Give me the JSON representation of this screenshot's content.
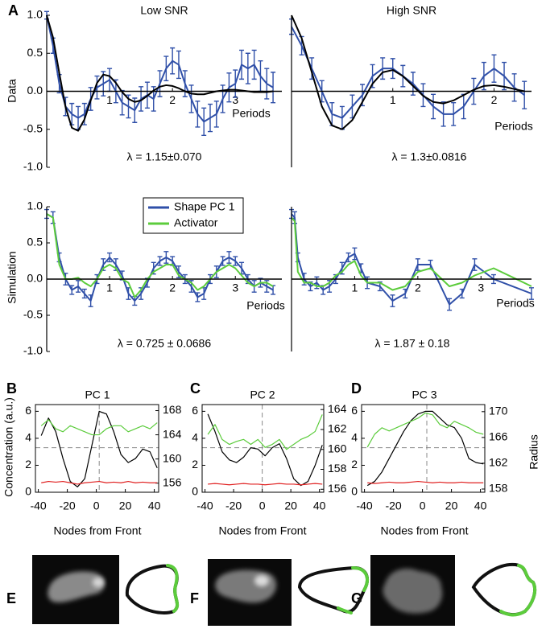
{
  "panel_labels": [
    "A",
    "B",
    "C",
    "D",
    "E",
    "F",
    "G"
  ],
  "chart_data": [
    {
      "type": "line",
      "frame": "origin",
      "title": "Low SNR",
      "ylabel": "Data",
      "xlabel": "Periods",
      "annotation": "λ = 1.15±0.070",
      "xlim": [
        0,
        3.74
      ],
      "ylim": [
        -1,
        1
      ],
      "xticks": [
        1,
        2,
        3
      ],
      "yticks": [
        {
          "value": -1,
          "label": "-1.0"
        },
        {
          "value": -0.5,
          "label": "-0.5"
        },
        {
          "value": 0,
          "label": "0.0"
        },
        {
          "value": 0.5,
          "label": "0.5"
        },
        {
          "value": 1,
          "label": "1.0"
        }
      ],
      "x": [
        0,
        0.1,
        0.2,
        0.3,
        0.4,
        0.5,
        0.6,
        0.7,
        0.8,
        0.9,
        1.0,
        1.1,
        1.2,
        1.3,
        1.4,
        1.5,
        1.6,
        1.7,
        1.8,
        1.9,
        2.0,
        2.1,
        2.2,
        2.3,
        2.4,
        2.5,
        2.6,
        2.7,
        2.8,
        2.9,
        3.0,
        3.1,
        3.2,
        3.3,
        3.4,
        3.5,
        3.6
      ],
      "series": [
        {
          "color": "#2f4fa8",
          "values": [
            1.0,
            0.6,
            0.1,
            -0.2,
            -0.3,
            -0.35,
            -0.3,
            -0.1,
            0.05,
            0.1,
            0.15,
            0,
            -0.15,
            -0.2,
            -0.25,
            -0.1,
            -0.05,
            -0.1,
            0.1,
            0.3,
            0.4,
            0.35,
            0.1,
            -0.1,
            -0.3,
            -0.4,
            -0.35,
            -0.3,
            -0.1,
            0.05,
            0.1,
            0.35,
            0.3,
            0.35,
            0.2,
            0.1,
            0.05
          ],
          "errors": [
            0.05,
            0.1,
            0.12,
            0.12,
            0.14,
            0.15,
            0.14,
            0.15,
            0.15,
            0.16,
            0.15,
            0.15,
            0.16,
            0.15,
            0.16,
            0.16,
            0.17,
            0.16,
            0.17,
            0.16,
            0.17,
            0.18,
            0.17,
            0.18,
            0.17,
            0.18,
            0.18,
            0.17,
            0.18,
            0.19,
            0.18,
            0.19,
            0.2,
            0.19,
            0.2,
            0.2,
            0.2
          ]
        },
        {
          "color": "#000000",
          "values": [
            1.0,
            0.71,
            0.24,
            -0.21,
            -0.48,
            -0.52,
            -0.37,
            -0.12,
            0.11,
            0.22,
            0.2,
            0.11,
            -0.01,
            -0.1,
            -0.14,
            -0.12,
            -0.06,
            0.01,
            0.06,
            0.08,
            0.07,
            0.04,
            0,
            -0.03,
            -0.04,
            -0.04,
            -0.02,
            0,
            0.01,
            0.02,
            0.02,
            0.01,
            0,
            -0.01,
            -0.01,
            -0.01,
            0
          ]
        }
      ]
    },
    {
      "type": "line",
      "frame": "origin",
      "title": "High SNR",
      "xlabel": "Periods",
      "annotation": "λ = 1.3±0.0816",
      "xlim": [
        0,
        2.37
      ],
      "ylim": [
        -1,
        1
      ],
      "xticks": [
        1,
        2
      ],
      "x": [
        0,
        0.1,
        0.2,
        0.3,
        0.4,
        0.5,
        0.6,
        0.7,
        0.8,
        0.9,
        1.0,
        1.1,
        1.2,
        1.3,
        1.4,
        1.5,
        1.6,
        1.7,
        1.8,
        1.9,
        2.0,
        2.1,
        2.2,
        2.3
      ],
      "series": [
        {
          "color": "#2f4fa8",
          "values": [
            0.85,
            0.6,
            0.3,
            0,
            -0.3,
            -0.35,
            -0.2,
            -0.05,
            0.2,
            0.3,
            0.3,
            0.2,
            0.1,
            -0.05,
            -0.2,
            -0.3,
            -0.3,
            -0.2,
            0,
            0.2,
            0.3,
            0.2,
            0.05,
            -0.05
          ],
          "errors": [
            0.1,
            0.12,
            0.14,
            0.14,
            0.15,
            0.15,
            0.15,
            0.14,
            0.15,
            0.14,
            0.13,
            0.14,
            0.15,
            0.15,
            0.16,
            0.16,
            0.15,
            0.16,
            0.17,
            0.18,
            0.18,
            0.18,
            0.18,
            0.18
          ]
        },
        {
          "color": "#000000",
          "values": [
            1.0,
            0.7,
            0.25,
            -0.2,
            -0.45,
            -0.5,
            -0.38,
            -0.14,
            0.1,
            0.25,
            0.28,
            0.2,
            0.07,
            -0.06,
            -0.14,
            -0.16,
            -0.12,
            -0.05,
            0.02,
            0.07,
            0.08,
            0.06,
            0.03,
            0
          ]
        }
      ]
    },
    {
      "type": "line",
      "frame": "origin",
      "ylabel": "Simulation",
      "xlabel": "Periods",
      "annotation": "λ = 0.725 ± 0.0686",
      "xlim": [
        0,
        3.74
      ],
      "ylim": [
        -1,
        1
      ],
      "xticks": [
        1,
        2,
        3
      ],
      "yticks": [
        {
          "value": -1,
          "label": "-1.0"
        },
        {
          "value": -0.5,
          "label": "-0.5"
        },
        {
          "value": 0,
          "label": "0.0"
        },
        {
          "value": 0.5,
          "label": "0.5"
        },
        {
          "value": 1,
          "label": "1.0"
        }
      ],
      "x": [
        0,
        0.1,
        0.2,
        0.3,
        0.4,
        0.5,
        0.6,
        0.7,
        0.8,
        0.9,
        1.0,
        1.1,
        1.2,
        1.3,
        1.4,
        1.5,
        1.6,
        1.7,
        1.8,
        1.9,
        2.0,
        2.1,
        2.2,
        2.3,
        2.4,
        2.5,
        2.6,
        2.7,
        2.8,
        2.9,
        3.0,
        3.1,
        3.2,
        3.3,
        3.4,
        3.5,
        3.6
      ],
      "series": [
        {
          "name": "Shape PC 1",
          "color": "#2f4fa8",
          "values": [
            0.9,
            0.85,
            0.3,
            0,
            -0.15,
            -0.1,
            -0.2,
            -0.3,
            0,
            0.2,
            0.3,
            0.2,
            0.05,
            -0.2,
            -0.3,
            -0.2,
            -0.05,
            0.15,
            0.25,
            0.3,
            0.25,
            0.1,
            0,
            -0.1,
            -0.25,
            -0.2,
            0,
            0.1,
            0.25,
            0.3,
            0.25,
            0.15,
            0,
            -0.1,
            -0.05,
            -0.1,
            -0.15
          ],
          "errors": [
            0.06,
            0.08,
            0.06,
            0.08,
            0.06,
            0.08,
            0.06,
            0.08,
            0.06,
            0.08,
            0.06,
            0.08,
            0.06,
            0.08,
            0.06,
            0.08,
            0.06,
            0.08,
            0.06,
            0.08,
            0.06,
            0.08,
            0.06,
            0.08,
            0.06,
            0.08,
            0.06,
            0.08,
            0.06,
            0.08,
            0.06,
            0.08,
            0.06,
            0.08,
            0.06,
            0.08,
            0.06
          ]
        },
        {
          "name": "Activator",
          "color": "#5ccc3c",
          "values": [
            0.9,
            0.85,
            0.2,
            0,
            0,
            0.02,
            -0.05,
            -0.1,
            0,
            0.15,
            0.2,
            0.15,
            0,
            -0.05,
            -0.25,
            -0.15,
            0,
            0.1,
            0.15,
            0.2,
            0.2,
            0.05,
            0,
            -0.05,
            -0.15,
            -0.1,
            0,
            0.1,
            0.15,
            0.2,
            0.15,
            0.05,
            -0.05,
            -0.1,
            -0.05,
            -0.05,
            -0.1
          ]
        }
      ]
    },
    {
      "type": "line",
      "frame": "origin",
      "xlabel": "Periods",
      "annotation": "λ = 1.87 ± 0.18",
      "xlim": [
        0,
        3.8
      ],
      "ylim": [
        -1,
        1
      ],
      "xticks": [
        1,
        2,
        3
      ],
      "x": [
        0,
        0.05,
        0.1,
        0.2,
        0.3,
        0.4,
        0.5,
        0.6,
        0.7,
        0.8,
        0.9,
        1.0,
        1.1,
        1.2,
        1.4,
        1.6,
        1.8,
        2.0,
        2.2,
        2.5,
        2.7,
        2.9,
        3.2,
        3.8
      ],
      "series": [
        {
          "color": "#2f4fa8",
          "values": [
            0.9,
            0.85,
            0.3,
            0,
            -0.1,
            -0.05,
            -0.15,
            -0.1,
            0,
            0.15,
            0.3,
            0.35,
            0.15,
            -0.05,
            -0.1,
            -0.3,
            -0.2,
            0.2,
            0.2,
            -0.35,
            -0.2,
            0.2,
            0,
            -0.2
          ],
          "errors": [
            0.06,
            0.08,
            0.06,
            0.08,
            0.06,
            0.08,
            0.06,
            0.08,
            0.06,
            0.08,
            0.06,
            0.08,
            0.06,
            0.08,
            0.06,
            0.08,
            0.06,
            0.08,
            0.06,
            0.08,
            0.06,
            0.08,
            0.06,
            0.08
          ]
        },
        {
          "color": "#5ccc3c",
          "values": [
            0.85,
            0.8,
            0.1,
            -0.05,
            -0.05,
            -0.1,
            -0.1,
            -0.05,
            0.05,
            0.1,
            0.2,
            0.25,
            0.05,
            -0.05,
            -0.05,
            -0.15,
            -0.1,
            0.1,
            0.15,
            -0.1,
            -0.05,
            0.05,
            0.15,
            -0.1
          ]
        }
      ]
    },
    {
      "type": "line",
      "frame": "box",
      "title": "PC 1",
      "ylabel": "Concentration (a.u.)",
      "xlabel": "Nodes from Front",
      "xlim": [
        -42,
        43
      ],
      "ylim": [
        0,
        6.5
      ],
      "y2lim": [
        154.5,
        169
      ],
      "xticks": [
        -40,
        -20,
        0,
        20,
        40
      ],
      "yticks": [
        0,
        2,
        4,
        6
      ],
      "y2ticks": [
        156,
        160,
        164,
        168
      ],
      "hline": 3.3,
      "vline": 2,
      "x": [
        -38,
        -33,
        -28,
        -23,
        -18,
        -13,
        -8,
        -3,
        2,
        7,
        12,
        17,
        22,
        27,
        32,
        37,
        42
      ],
      "series": [
        {
          "color": "#000000",
          "values": [
            4.2,
            5.5,
            4.5,
            2.5,
            0.8,
            0.4,
            1.0,
            3.5,
            6.0,
            5.8,
            4.5,
            2.8,
            2.2,
            2.5,
            3.2,
            3.0,
            1.8
          ]
        },
        {
          "color": "#e02020",
          "values": [
            0.7,
            0.8,
            0.75,
            0.8,
            0.7,
            0.6,
            0.7,
            0.75,
            0.8,
            0.7,
            0.75,
            0.7,
            0.8,
            0.7,
            0.75,
            0.7,
            0.7
          ]
        },
        {
          "color": "#5ccc3c",
          "axis": "y2",
          "values": [
            165.5,
            166.5,
            165,
            164.5,
            165.5,
            165,
            164.5,
            164,
            164,
            165,
            165.5,
            165.5,
            164.5,
            165,
            165.5,
            165,
            166
          ]
        }
      ]
    },
    {
      "type": "line",
      "frame": "box",
      "title": "PC 2",
      "xlabel": "Nodes from Front",
      "xlim": [
        -42,
        43
      ],
      "ylim": [
        0,
        6.5
      ],
      "y2lim": [
        155.7,
        164.5
      ],
      "xticks": [
        -40,
        -20,
        0,
        20,
        40
      ],
      "yticks": [
        0,
        2,
        4,
        6
      ],
      "y2ticks": [
        156,
        158,
        160,
        162,
        164
      ],
      "hline": 3.3,
      "vline": 0,
      "x": [
        -38,
        -33,
        -28,
        -23,
        -18,
        -13,
        -8,
        -3,
        2,
        7,
        12,
        17,
        22,
        27,
        32,
        37,
        42
      ],
      "series": [
        {
          "color": "#000000",
          "values": [
            5.8,
            4.5,
            3,
            2.4,
            2.2,
            2.6,
            3.3,
            3.2,
            2.7,
            3.3,
            3.6,
            2.5,
            1.0,
            0.5,
            0.8,
            2.0,
            3.5
          ]
        },
        {
          "color": "#e02020",
          "values": [
            0.6,
            0.65,
            0.6,
            0.55,
            0.6,
            0.65,
            0.6,
            0.6,
            0.55,
            0.6,
            0.65,
            0.6,
            0.6,
            0.55,
            0.6,
            0.65,
            0.6
          ]
        },
        {
          "color": "#5ccc3c",
          "axis": "y2",
          "values": [
            161.5,
            162.5,
            161,
            160.5,
            160.8,
            161,
            160.5,
            161,
            160.2,
            160.5,
            161,
            160,
            160.5,
            161,
            161.3,
            161.8,
            163.5
          ]
        }
      ]
    },
    {
      "type": "line",
      "frame": "box",
      "title": "PC 3",
      "xlabel": "Nodes from Front",
      "y2label": "Radius",
      "xlim": [
        -42,
        43
      ],
      "ylim": [
        0,
        6.5
      ],
      "y2lim": [
        157.5,
        171.1
      ],
      "xticks": [
        -40,
        -20,
        0,
        20,
        40
      ],
      "yticks": [
        0,
        2,
        4,
        6
      ],
      "y2ticks": [
        158,
        162,
        166,
        170
      ],
      "hline": 3.3,
      "vline": 3,
      "x": [
        -38,
        -33,
        -28,
        -23,
        -18,
        -13,
        -8,
        -3,
        2,
        7,
        12,
        17,
        22,
        27,
        32,
        37,
        42
      ],
      "series": [
        {
          "color": "#000000",
          "values": [
            0.5,
            0.8,
            1.5,
            2.5,
            3.5,
            4.5,
            5.3,
            5.8,
            6.0,
            6.0,
            5.5,
            5.0,
            4.8,
            4.0,
            2.5,
            2.2,
            2.1
          ]
        },
        {
          "color": "#e02020",
          "values": [
            0.7,
            0.65,
            0.7,
            0.75,
            0.7,
            0.7,
            0.75,
            0.8,
            0.75,
            0.7,
            0.75,
            0.7,
            0.7,
            0.75,
            0.7,
            0.7,
            0.7
          ]
        },
        {
          "color": "#5ccc3c",
          "axis": "y2",
          "values": [
            164.5,
            166.5,
            167.5,
            167,
            167.5,
            168,
            168.5,
            169,
            169.8,
            169.5,
            168,
            167.5,
            168.5,
            168,
            167.5,
            166.8,
            166.5
          ]
        }
      ]
    }
  ]
}
